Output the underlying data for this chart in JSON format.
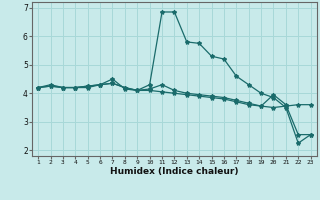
{
  "xlabel": "Humidex (Indice chaleur)",
  "background_color": "#c8eaea",
  "grid_color": "#a8d8d8",
  "line_color": "#1a6b6b",
  "x_values": [
    1,
    2,
    3,
    4,
    5,
    6,
    7,
    8,
    9,
    10,
    11,
    12,
    13,
    14,
    15,
    16,
    17,
    18,
    19,
    20,
    21,
    22,
    23
  ],
  "line1": [
    4.2,
    4.3,
    4.2,
    4.2,
    4.2,
    4.3,
    4.5,
    4.15,
    4.1,
    4.3,
    6.85,
    6.85,
    5.8,
    5.75,
    5.3,
    5.2,
    4.6,
    4.3,
    4.0,
    3.85,
    3.5,
    2.25,
    2.55
  ],
  "line2": [
    4.2,
    4.25,
    4.2,
    4.2,
    4.25,
    4.3,
    4.35,
    4.2,
    4.1,
    4.15,
    4.3,
    4.1,
    4.0,
    3.95,
    3.9,
    3.85,
    3.75,
    3.65,
    3.55,
    3.95,
    3.6,
    2.55,
    2.55
  ],
  "line3": [
    4.2,
    4.25,
    4.2,
    4.2,
    4.25,
    4.3,
    4.35,
    4.2,
    4.1,
    4.1,
    4.05,
    4.0,
    3.95,
    3.9,
    3.85,
    3.8,
    3.7,
    3.6,
    3.55,
    3.5,
    3.55,
    3.6,
    3.6
  ],
  "ylim": [
    1.8,
    7.2
  ],
  "xlim": [
    0.5,
    23.5
  ],
  "yticks": [
    2,
    3,
    4,
    5,
    6,
    7
  ],
  "xticks": [
    1,
    2,
    3,
    4,
    5,
    6,
    7,
    8,
    9,
    10,
    11,
    12,
    13,
    14,
    15,
    16,
    17,
    18,
    19,
    20,
    21,
    22,
    23
  ]
}
